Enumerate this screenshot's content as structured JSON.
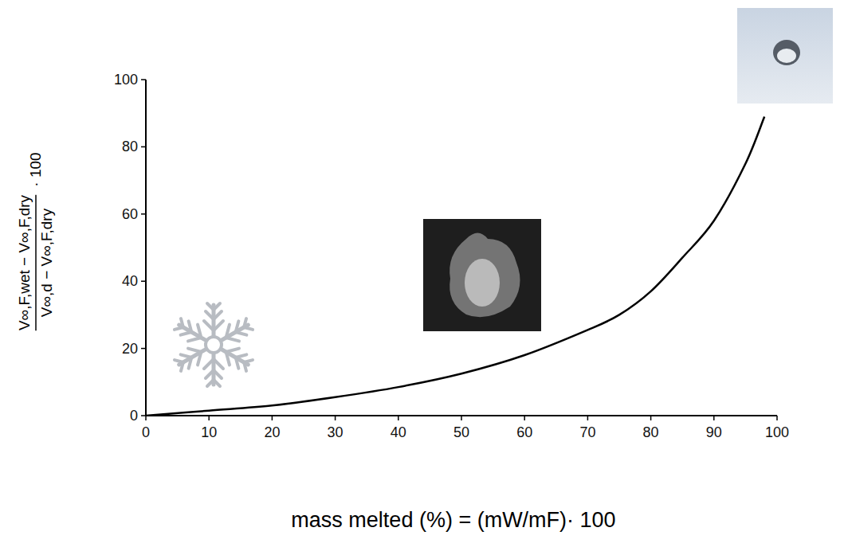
{
  "chart_data": {
    "type": "line",
    "xlabel": "mass melted (%) = (mW/mF)· 100",
    "ylabel": {
      "numerator": "V∞,F,wet − V∞,F,dry",
      "denominator": "V∞,d − V∞,F,dry",
      "factor": "· 100"
    },
    "x": [
      0,
      10,
      20,
      30,
      40,
      50,
      60,
      70,
      75,
      80,
      85,
      90,
      95,
      98
    ],
    "values": [
      0,
      1.5,
      3,
      5.5,
      8.5,
      12.5,
      18,
      25.5,
      30,
      37,
      47,
      58,
      75,
      89
    ],
    "color": "#000000",
    "xlim": [
      0,
      100
    ],
    "ylim": [
      0,
      100
    ],
    "xticks": [
      0,
      10,
      20,
      30,
      40,
      50,
      60,
      70,
      80,
      90,
      100
    ],
    "yticks": [
      0,
      20,
      40,
      60,
      80,
      100
    ],
    "grid": false
  }
}
